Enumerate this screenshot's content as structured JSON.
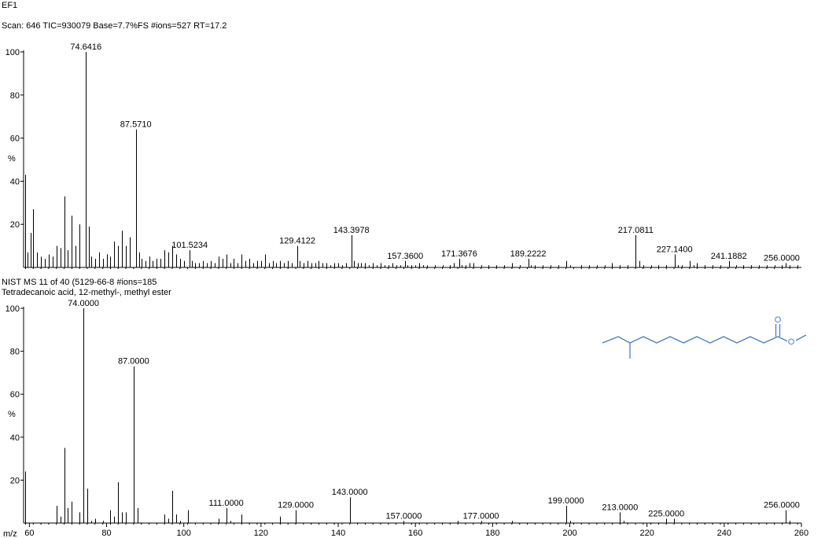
{
  "top_panel": {
    "title": "EF1",
    "info": "Scan: 646   TIC=930079   Base=7.7%FS   #ions=527   RT=17.2"
  },
  "bottom_panel": {
    "info": "NIST MS 11 of 40 (5129-66-8   #ions=185",
    "compound": "Tetradecanoic acid, 12-methyl-, methyl ester"
  },
  "structure": {
    "color": "#4a7cc9",
    "oxygen_label": "O",
    "ester_oxygen_label": "O"
  },
  "colors": {
    "axis": "#000000",
    "peak": "#000000",
    "structure": "#4a7cc9"
  },
  "chart_data": [
    {
      "type": "bar",
      "ylabel": "%",
      "xlim": [
        58.5,
        260
      ],
      "ylim": [
        0,
        100
      ],
      "yticks": [
        20,
        40,
        60,
        80,
        100
      ],
      "peaks": [
        [
          59,
          43
        ],
        [
          59.6,
          7
        ],
        [
          60.3,
          16
        ],
        [
          61,
          27
        ],
        [
          62,
          7
        ],
        [
          63,
          5
        ],
        [
          64,
          4
        ],
        [
          65,
          6
        ],
        [
          66,
          5
        ],
        [
          67,
          10
        ],
        [
          68,
          9
        ],
        [
          69,
          33
        ],
        [
          70,
          8
        ],
        [
          71,
          24
        ],
        [
          72,
          10
        ],
        [
          73,
          20
        ],
        [
          74.64,
          100
        ],
        [
          75.5,
          19
        ],
        [
          76,
          5
        ],
        [
          77,
          4
        ],
        [
          78,
          7
        ],
        [
          79,
          4
        ],
        [
          80,
          6
        ],
        [
          81,
          5
        ],
        [
          82,
          12
        ],
        [
          83,
          10
        ],
        [
          84,
          17
        ],
        [
          85,
          10
        ],
        [
          86,
          14
        ],
        [
          87.57,
          64
        ],
        [
          88.5,
          7
        ],
        [
          89,
          4
        ],
        [
          90,
          3
        ],
        [
          91,
          5
        ],
        [
          92,
          3
        ],
        [
          93,
          4
        ],
        [
          94,
          4
        ],
        [
          95,
          8
        ],
        [
          96,
          7
        ],
        [
          97,
          10
        ],
        [
          98,
          6
        ],
        [
          99,
          4
        ],
        [
          100,
          3
        ],
        [
          101.52,
          8
        ],
        [
          102,
          3
        ],
        [
          103,
          2
        ],
        [
          104,
          2
        ],
        [
          105,
          3
        ],
        [
          106,
          2
        ],
        [
          107,
          3
        ],
        [
          108,
          2
        ],
        [
          109,
          5
        ],
        [
          110,
          4
        ],
        [
          111,
          6
        ],
        [
          112,
          2
        ],
        [
          113,
          4
        ],
        [
          114,
          2
        ],
        [
          115,
          6
        ],
        [
          116,
          3
        ],
        [
          117,
          4
        ],
        [
          118,
          2
        ],
        [
          119,
          3
        ],
        [
          120,
          3
        ],
        [
          121,
          6
        ],
        [
          122,
          2
        ],
        [
          123,
          3
        ],
        [
          124,
          2
        ],
        [
          125,
          3
        ],
        [
          126,
          2
        ],
        [
          127,
          3
        ],
        [
          128,
          2
        ],
        [
          129.41,
          10
        ],
        [
          130,
          3
        ],
        [
          131,
          2
        ],
        [
          132,
          3
        ],
        [
          133,
          2
        ],
        [
          134,
          2
        ],
        [
          135,
          3
        ],
        [
          136,
          2
        ],
        [
          137,
          2
        ],
        [
          138,
          1
        ],
        [
          139,
          2
        ],
        [
          140,
          2
        ],
        [
          141,
          1
        ],
        [
          142,
          2
        ],
        [
          143.4,
          15
        ],
        [
          144,
          3
        ],
        [
          145,
          2
        ],
        [
          146,
          2
        ],
        [
          147,
          2
        ],
        [
          148,
          1
        ],
        [
          149,
          2
        ],
        [
          150,
          1
        ],
        [
          151,
          2
        ],
        [
          152,
          1
        ],
        [
          153,
          1
        ],
        [
          154,
          2
        ],
        [
          155,
          1
        ],
        [
          156,
          1
        ],
        [
          157.36,
          3
        ],
        [
          158,
          1
        ],
        [
          159,
          1
        ],
        [
          160,
          1
        ],
        [
          161,
          2
        ],
        [
          162,
          1
        ],
        [
          163,
          1
        ],
        [
          165,
          1
        ],
        [
          167,
          1
        ],
        [
          169,
          1
        ],
        [
          170,
          2
        ],
        [
          171.37,
          4
        ],
        [
          172,
          1
        ],
        [
          173,
          1
        ],
        [
          174,
          2
        ],
        [
          175,
          2
        ],
        [
          177,
          1
        ],
        [
          179,
          1
        ],
        [
          181,
          1
        ],
        [
          183,
          1
        ],
        [
          185,
          2
        ],
        [
          187,
          1
        ],
        [
          189.22,
          4
        ],
        [
          190,
          1
        ],
        [
          191,
          1
        ],
        [
          193,
          1
        ],
        [
          195,
          1
        ],
        [
          197,
          1
        ],
        [
          199,
          3
        ],
        [
          200,
          1
        ],
        [
          203,
          1
        ],
        [
          205,
          1
        ],
        [
          207,
          1
        ],
        [
          209,
          1
        ],
        [
          211,
          2
        ],
        [
          213,
          1
        ],
        [
          215,
          1
        ],
        [
          217.08,
          15
        ],
        [
          218,
          3
        ],
        [
          219,
          1
        ],
        [
          221,
          1
        ],
        [
          223,
          1
        ],
        [
          225,
          1
        ],
        [
          227.14,
          6
        ],
        [
          228,
          1
        ],
        [
          229,
          1
        ],
        [
          231,
          3
        ],
        [
          232,
          1
        ],
        [
          233,
          2
        ],
        [
          235,
          1
        ],
        [
          237,
          1
        ],
        [
          239,
          1
        ],
        [
          241.19,
          3
        ],
        [
          243,
          1
        ],
        [
          245,
          1
        ],
        [
          247,
          1
        ],
        [
          249,
          1
        ],
        [
          251,
          1
        ],
        [
          253,
          1
        ],
        [
          255,
          1
        ],
        [
          256,
          2
        ],
        [
          257,
          1
        ],
        [
          259,
          1
        ]
      ],
      "annotations": [
        {
          "x": 74.64,
          "y": 100,
          "text": "74.6416"
        },
        {
          "x": 87.57,
          "y": 64,
          "text": "87.5710"
        },
        {
          "x": 101.52,
          "y": 8,
          "text": "101.5234"
        },
        {
          "x": 129.41,
          "y": 10,
          "text": "129.4122"
        },
        {
          "x": 143.4,
          "y": 15,
          "text": "143.3978"
        },
        {
          "x": 157.36,
          "y": 3,
          "text": "157.3600"
        },
        {
          "x": 171.37,
          "y": 4,
          "text": "171.3676"
        },
        {
          "x": 189.22,
          "y": 4,
          "text": "189.2222"
        },
        {
          "x": 217.08,
          "y": 15,
          "text": "217.0811"
        },
        {
          "x": 227.14,
          "y": 6,
          "text": "227.1400"
        },
        {
          "x": 241.19,
          "y": 3,
          "text": "241.1882"
        },
        {
          "x": 256,
          "y": 2,
          "text": "256.0000"
        }
      ]
    },
    {
      "type": "bar",
      "ylabel": "%",
      "xlabel": "m/z",
      "xlim": [
        58.5,
        260
      ],
      "ylim": [
        0,
        100
      ],
      "yticks": [
        20,
        40,
        60,
        80,
        100
      ],
      "xticks": [
        60,
        80,
        100,
        120,
        140,
        160,
        180,
        200,
        220,
        240,
        260
      ],
      "peaks": [
        [
          59,
          24
        ],
        [
          67,
          8
        ],
        [
          68,
          3
        ],
        [
          69,
          35
        ],
        [
          70,
          7
        ],
        [
          71,
          10
        ],
        [
          73,
          5
        ],
        [
          74,
          100
        ],
        [
          75,
          16
        ],
        [
          76,
          1
        ],
        [
          77,
          2
        ],
        [
          79,
          1
        ],
        [
          81,
          6
        ],
        [
          82,
          3
        ],
        [
          83,
          19
        ],
        [
          84,
          5
        ],
        [
          85,
          5
        ],
        [
          87,
          73
        ],
        [
          88,
          7
        ],
        [
          95,
          4
        ],
        [
          96,
          2
        ],
        [
          97,
          15
        ],
        [
          98,
          4
        ],
        [
          99,
          1
        ],
        [
          101,
          6
        ],
        [
          109,
          2
        ],
        [
          111,
          7
        ],
        [
          112,
          1
        ],
        [
          115,
          4
        ],
        [
          125,
          3
        ],
        [
          129,
          6
        ],
        [
          143,
          12
        ],
        [
          157,
          1
        ],
        [
          171,
          1
        ],
        [
          177,
          1
        ],
        [
          185,
          1
        ],
        [
          199,
          8
        ],
        [
          200,
          1
        ],
        [
          213,
          5
        ],
        [
          214,
          1
        ],
        [
          225,
          2
        ],
        [
          227,
          2
        ],
        [
          256,
          6
        ],
        [
          257,
          1
        ]
      ],
      "annotations": [
        {
          "x": 74,
          "y": 100,
          "text": "74.0000"
        },
        {
          "x": 87,
          "y": 73,
          "text": "87.0000"
        },
        {
          "x": 111,
          "y": 7,
          "text": "111.0000"
        },
        {
          "x": 129,
          "y": 6,
          "text": "129.0000"
        },
        {
          "x": 143,
          "y": 12,
          "text": "143.0000"
        },
        {
          "x": 157,
          "y": 1,
          "text": "157.0000"
        },
        {
          "x": 177,
          "y": 1,
          "text": "177.0000"
        },
        {
          "x": 199,
          "y": 8,
          "text": "199.0000"
        },
        {
          "x": 213,
          "y": 5,
          "text": "213.0000"
        },
        {
          "x": 225,
          "y": 2,
          "text": "225.0000"
        },
        {
          "x": 256,
          "y": 6,
          "text": "256.0000"
        }
      ]
    }
  ]
}
